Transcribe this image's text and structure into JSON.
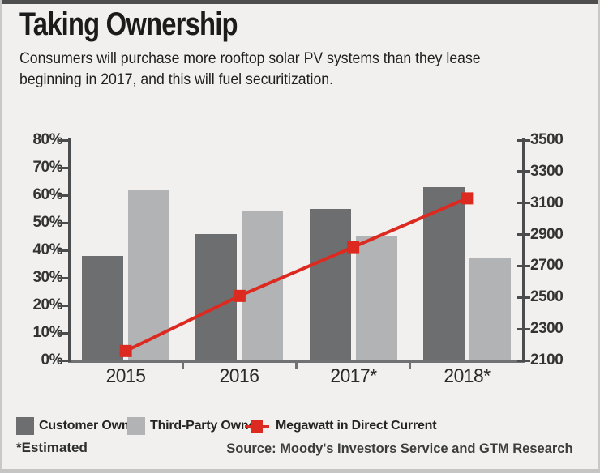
{
  "title": "Taking Ownership",
  "subtitle_line1": "Consumers will purchase more rooftop solar PV systems than they lease",
  "subtitle_line2": "beginning in 2017, and this will fuel securitization.",
  "footnote": "*Estimated",
  "source": "Source: Moody's Investors Service and GTM Research",
  "colors": {
    "background": "#f1f0ee",
    "frame_top": "#4e4e4e",
    "frame_side": "#c9c8c6",
    "frame_bottom": "#c6c5c3",
    "axis_line": "#4b4c4e",
    "baseline": "#6f7173",
    "customer_owned": "#6d6e70",
    "third_party_owned": "#b1b3b5",
    "line_red": "#dd2a20"
  },
  "chart_data": {
    "type": "bar",
    "subtype": "grouped bars with overlaid line on secondary axis",
    "categories": [
      "2015",
      "2016",
      "2017*",
      "2018*"
    ],
    "series": [
      {
        "name": "Customer Owned",
        "type": "bar",
        "axis": "left",
        "color": "#6d6e70",
        "values": [
          38,
          46,
          55,
          63
        ]
      },
      {
        "name": "Third-Party Owned",
        "type": "bar",
        "axis": "left",
        "color": "#b1b3b5",
        "values": [
          62,
          54,
          45,
          37
        ]
      },
      {
        "name": "Megawatt in Direct Current",
        "type": "line",
        "axis": "right",
        "color": "#dd2a20",
        "values": [
          2160,
          2510,
          2820,
          3130
        ]
      }
    ],
    "left_axis": {
      "min": 0,
      "max": 80,
      "step": 10,
      "unit": "%",
      "tick_labels": [
        "0%",
        "10%",
        "20%",
        "30%",
        "40%",
        "50%",
        "60%",
        "70%",
        "80%"
      ]
    },
    "right_axis": {
      "min": 2100,
      "max": 3500,
      "step": 200,
      "tick_labels": [
        "2100",
        "2300",
        "2500",
        "2700",
        "2900",
        "3100",
        "3300",
        "3500"
      ]
    },
    "legend_position": "bottom",
    "grid": false
  }
}
